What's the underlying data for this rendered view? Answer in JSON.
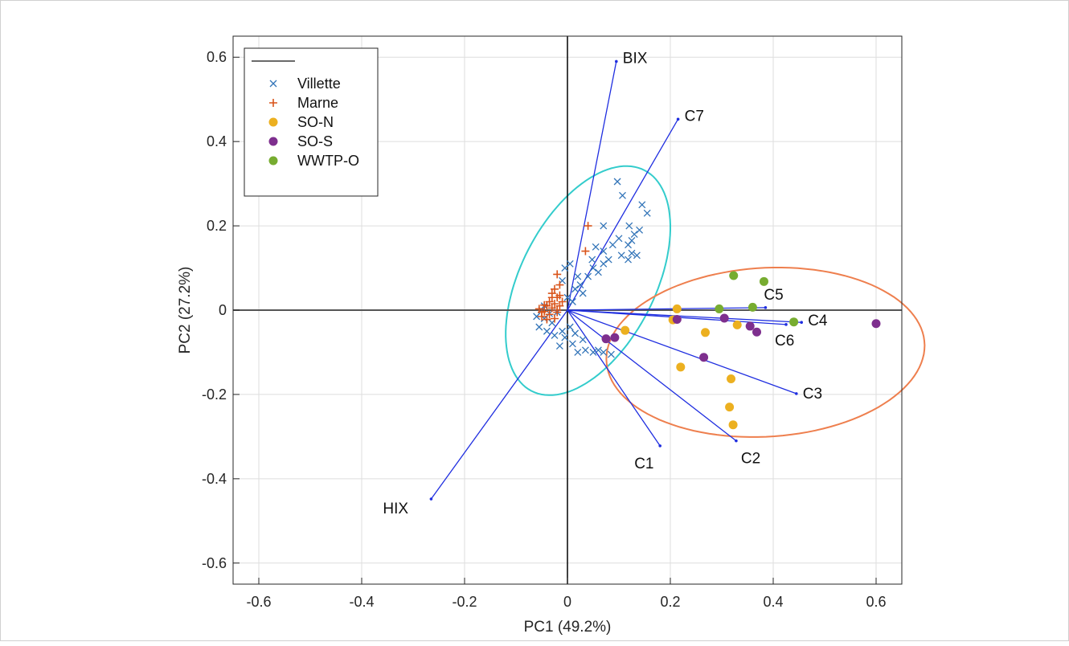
{
  "chart_data": {
    "type": "scatter",
    "title": "",
    "xlabel": "PC1 (49.2%)",
    "ylabel": "PC2 (27.2%)",
    "xlim": [
      -0.65,
      0.65
    ],
    "ylim": [
      -0.65,
      0.65
    ],
    "xticks": [
      -0.6,
      -0.4,
      -0.2,
      0,
      0.2,
      0.4,
      0.6
    ],
    "yticks": [
      -0.6,
      -0.4,
      -0.2,
      0,
      0.2,
      0.4,
      0.6
    ],
    "xtick_labels": [
      "-0.6",
      "-0.4",
      "-0.2",
      "0",
      "0.2",
      "0.4",
      "0.6"
    ],
    "ytick_labels": [
      "-0.6",
      "-0.4",
      "-0.2",
      "0",
      "0.2",
      "0.4",
      "0.6"
    ],
    "grid": true,
    "legend": {
      "placement": "top-left",
      "entries": [
        {
          "series": "Villette",
          "marker": "x",
          "color": "#3274b8"
        },
        {
          "series": "Marne",
          "marker": "+",
          "color": "#d9541a"
        },
        {
          "series": "SO-N",
          "marker": "dot",
          "color": "#ecb020"
        },
        {
          "series": "SO-S",
          "marker": "dot",
          "color": "#7e2f8e"
        },
        {
          "series": "WWTP-O",
          "marker": "dot",
          "color": "#77ac30"
        }
      ]
    },
    "loadings": [
      {
        "label": "BIX",
        "x": 0.095,
        "y": 0.59
      },
      {
        "label": "C7",
        "x": 0.215,
        "y": 0.453
      },
      {
        "label": "C5",
        "x": 0.385,
        "y": 0.006
      },
      {
        "label": "C4",
        "x": 0.455,
        "y": -0.029
      },
      {
        "label": "C6",
        "x": 0.425,
        "y": -0.034
      },
      {
        "label": "C3",
        "x": 0.445,
        "y": -0.198
      },
      {
        "label": "C2",
        "x": 0.328,
        "y": -0.31
      },
      {
        "label": "C1",
        "x": 0.18,
        "y": -0.322
      },
      {
        "label": "HIX",
        "x": -0.265,
        "y": -0.448
      }
    ],
    "loading_color": "#1f2ee0",
    "ellipses": [
      {
        "color": "#33cccc",
        "cx": 0.04,
        "cy": 0.07,
        "rx": 0.285,
        "ry": 0.135,
        "angle_deg": 70
      },
      {
        "color": "#ee7f4e",
        "cx": 0.385,
        "cy": -0.1,
        "rx": 0.31,
        "ry": 0.2,
        "angle_deg": 5
      }
    ],
    "series": [
      {
        "name": "SO-N",
        "marker": "dot",
        "color": "#ecb020",
        "points": [
          [
            0.213,
            0.003
          ],
          [
            0.205,
            -0.023
          ],
          [
            0.112,
            -0.048
          ],
          [
            0.268,
            -0.053
          ],
          [
            0.33,
            -0.035
          ],
          [
            0.22,
            -0.135
          ],
          [
            0.318,
            -0.163
          ],
          [
            0.315,
            -0.23
          ],
          [
            0.322,
            -0.272
          ]
        ]
      },
      {
        "name": "SO-S",
        "marker": "dot",
        "color": "#7e2f8e",
        "points": [
          [
            0.213,
            -0.022
          ],
          [
            0.305,
            -0.019
          ],
          [
            0.355,
            -0.038
          ],
          [
            0.368,
            -0.052
          ],
          [
            0.265,
            -0.112
          ],
          [
            0.092,
            -0.065
          ],
          [
            0.075,
            -0.068
          ],
          [
            0.6,
            -0.032
          ]
        ]
      },
      {
        "name": "WWTP-O",
        "marker": "dot",
        "color": "#77ac30",
        "points": [
          [
            0.323,
            0.082
          ],
          [
            0.382,
            0.068
          ],
          [
            0.295,
            0.003
          ],
          [
            0.36,
            0.007
          ],
          [
            0.44,
            -0.028
          ]
        ]
      },
      {
        "name": "Villette",
        "marker": "x",
        "color": "#3274b8",
        "points": [
          [
            0.097,
            0.305
          ],
          [
            0.107,
            0.272
          ],
          [
            0.07,
            0.2
          ],
          [
            0.12,
            0.2
          ],
          [
            0.1,
            0.17
          ],
          [
            0.118,
            0.155
          ],
          [
            0.125,
            0.165
          ],
          [
            0.088,
            0.155
          ],
          [
            0.105,
            0.13
          ],
          [
            0.118,
            0.12
          ],
          [
            0.125,
            0.135
          ],
          [
            0.135,
            0.13
          ],
          [
            0.07,
            0.14
          ],
          [
            0.055,
            0.15
          ],
          [
            0.048,
            0.12
          ],
          [
            0.07,
            0.11
          ],
          [
            0.08,
            0.12
          ],
          [
            0.06,
            0.09
          ],
          [
            0.05,
            0.1
          ],
          [
            0.04,
            0.08
          ],
          [
            0.025,
            0.06
          ],
          [
            0.03,
            0.04
          ],
          [
            0.015,
            0.05
          ],
          [
            0.005,
            0.11
          ],
          [
            -0.005,
            0.1
          ],
          [
            0.02,
            0.08
          ],
          [
            -0.01,
            0.07
          ],
          [
            0.01,
            0.02
          ],
          [
            0.0,
            0.03
          ],
          [
            -0.02,
            -0.005
          ],
          [
            -0.03,
            -0.03
          ],
          [
            -0.045,
            -0.02
          ],
          [
            -0.06,
            -0.015
          ],
          [
            -0.055,
            -0.04
          ],
          [
            -0.04,
            -0.05
          ],
          [
            -0.025,
            -0.06
          ],
          [
            -0.01,
            -0.05
          ],
          [
            0.005,
            -0.04
          ],
          [
            0.015,
            -0.055
          ],
          [
            0.01,
            -0.08
          ],
          [
            0.02,
            -0.1
          ],
          [
            0.035,
            -0.095
          ],
          [
            0.05,
            -0.1
          ],
          [
            0.06,
            -0.095
          ],
          [
            0.07,
            -0.1
          ],
          [
            0.085,
            -0.105
          ],
          [
            -0.015,
            -0.085
          ],
          [
            -0.005,
            -0.065
          ],
          [
            0.03,
            -0.07
          ],
          [
            -0.035,
            -0.008
          ],
          [
            -0.05,
            0.0
          ],
          [
            -0.045,
            0.01
          ],
          [
            0.145,
            0.25
          ],
          [
            0.155,
            0.23
          ],
          [
            0.14,
            0.19
          ],
          [
            0.13,
            0.18
          ]
        ]
      },
      {
        "name": "Marne",
        "marker": "+",
        "color": "#d9541a",
        "points": [
          [
            0.04,
            0.2
          ],
          [
            0.035,
            0.14
          ],
          [
            -0.02,
            0.085
          ],
          [
            -0.015,
            0.06
          ],
          [
            -0.025,
            0.05
          ],
          [
            -0.03,
            0.04
          ],
          [
            -0.02,
            0.03
          ],
          [
            -0.035,
            0.02
          ],
          [
            -0.025,
            0.015
          ],
          [
            -0.04,
            0.01
          ],
          [
            -0.03,
            0.005
          ],
          [
            -0.045,
            -0.003
          ],
          [
            -0.035,
            -0.01
          ],
          [
            -0.02,
            -0.005
          ],
          [
            -0.05,
            -0.015
          ],
          [
            -0.04,
            -0.022
          ],
          [
            -0.025,
            -0.02
          ],
          [
            -0.015,
            0.01
          ],
          [
            -0.01,
            0.02
          ],
          [
            -0.015,
            0.035
          ],
          [
            -0.03,
            0.03
          ],
          [
            -0.045,
            0.012
          ],
          [
            -0.055,
            0.003
          ],
          [
            -0.05,
            -0.005
          ],
          [
            -0.02,
            0.0
          ]
        ]
      }
    ]
  }
}
